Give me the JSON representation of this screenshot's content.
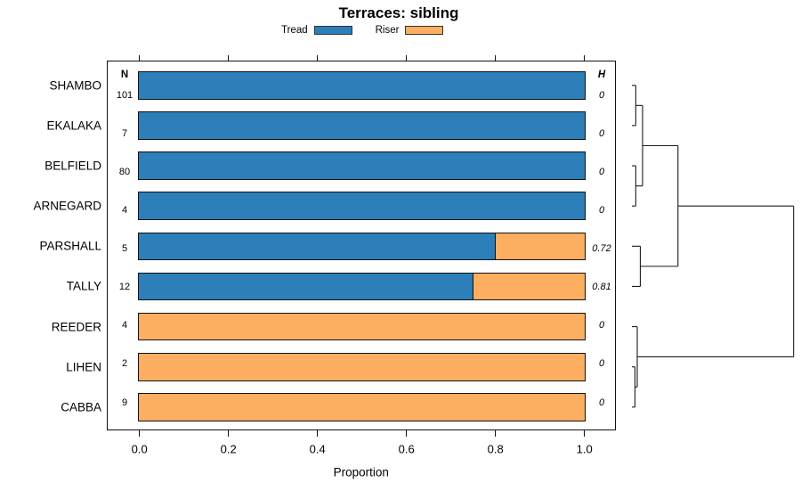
{
  "chart_data": {
    "type": "bar",
    "orientation": "horizontal-stacked",
    "title": "Terraces: sibling",
    "xlabel": "Proportion",
    "xlim": [
      0,
      1
    ],
    "x_ticks": [
      "0.0",
      "0.2",
      "0.4",
      "0.6",
      "0.8",
      "1.0"
    ],
    "x_tick_values": [
      0,
      0.2,
      0.4,
      0.6,
      0.8,
      1.0
    ],
    "grid": false,
    "legend_position": "top",
    "columns": {
      "n_header": "N",
      "h_header": "H"
    },
    "categories": [
      "SHAMBO",
      "EKALAKA",
      "BELFIELD",
      "ARNEGARD",
      "PARSHALL",
      "TALLY",
      "REEDER",
      "LIHEN",
      "CABBA"
    ],
    "n_values": [
      "101",
      "7",
      "80",
      "4",
      "5",
      "12",
      "4",
      "2",
      "9"
    ],
    "h_values": [
      "0",
      "0",
      "0",
      "0",
      "0.72",
      "0.81",
      "0",
      "0",
      "0"
    ],
    "series": [
      {
        "name": "Tread",
        "values": [
          1,
          1,
          1,
          1,
          0.8,
          0.75,
          0,
          0,
          0
        ]
      },
      {
        "name": "Riser",
        "values": [
          0,
          0,
          0,
          0,
          0.2,
          0.25,
          1,
          1,
          1
        ]
      }
    ],
    "colors": {
      "tread": "#2C7FB8",
      "riser": "#FDAE61",
      "bar_border": "#111111",
      "axis": "#111111",
      "dendrogram_line": "#1b1b1b"
    },
    "dendrogram": {
      "side": "right",
      "leaf_order": [
        "SHAMBO",
        "EKALAKA",
        "BELFIELD",
        "ARNEGARD",
        "PARSHALL",
        "TALLY",
        "REEDER",
        "LIHEN",
        "CABBA"
      ],
      "merges": [
        {
          "id": "m1",
          "children": [
            "SHAMBO",
            "EKALAKA"
          ],
          "height": 0.024
        },
        {
          "id": "m2",
          "children": [
            "BELFIELD",
            "ARNEGARD"
          ],
          "height": 0.024
        },
        {
          "id": "m3",
          "children": [
            "m1",
            "m2"
          ],
          "height": 0.066
        },
        {
          "id": "m4",
          "children": [
            "PARSHALL",
            "TALLY"
          ],
          "height": 0.052
        },
        {
          "id": "m5",
          "children": [
            "m3",
            "m4"
          ],
          "height": 0.285
        },
        {
          "id": "m6",
          "children": [
            "LIHEN",
            "CABBA"
          ],
          "height": 0.019
        },
        {
          "id": "m7",
          "children": [
            "REEDER",
            "m6"
          ],
          "height": 0.033
        },
        {
          "id": "m8",
          "children": [
            "m5",
            "m7"
          ],
          "height": 1.0
        }
      ]
    }
  }
}
